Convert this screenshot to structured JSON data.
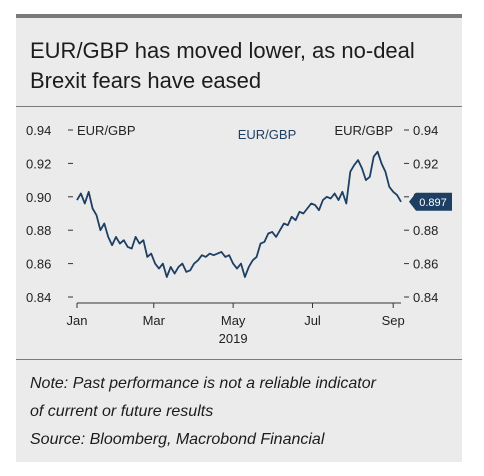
{
  "title_lines": [
    "EUR/GBP has moved lower, as no-deal",
    "Brexit fears have eased"
  ],
  "notes": [
    "Note: Past performance is not a reliable indicator",
    "of current or future results",
    "Source: Bloomberg, Macrobond Financial"
  ],
  "colors": {
    "line": "#1d3f63",
    "badge": "#1d3f63",
    "panel": "#ebebeb",
    "axis": "#333333"
  },
  "chart_data": {
    "type": "line",
    "title": "",
    "left_axis_label": "EUR/GBP",
    "right_axis_label": "EUR/GBP",
    "series": [
      {
        "name": "EUR/GBP",
        "x": [
          "2019-01-01",
          "2019-01-04",
          "2019-01-07",
          "2019-01-10",
          "2019-01-13",
          "2019-01-16",
          "2019-01-19",
          "2019-01-22",
          "2019-01-25",
          "2019-01-28",
          "2019-01-31",
          "2019-02-03",
          "2019-02-06",
          "2019-02-09",
          "2019-02-12",
          "2019-02-15",
          "2019-02-18",
          "2019-02-21",
          "2019-02-24",
          "2019-02-27",
          "2019-03-02",
          "2019-03-05",
          "2019-03-08",
          "2019-03-11",
          "2019-03-14",
          "2019-03-17",
          "2019-03-20",
          "2019-03-23",
          "2019-03-26",
          "2019-03-29",
          "2019-04-01",
          "2019-04-04",
          "2019-04-07",
          "2019-04-10",
          "2019-04-13",
          "2019-04-16",
          "2019-04-19",
          "2019-04-22",
          "2019-04-25",
          "2019-04-28",
          "2019-05-01",
          "2019-05-04",
          "2019-05-07",
          "2019-05-10",
          "2019-05-13",
          "2019-05-16",
          "2019-05-19",
          "2019-05-22",
          "2019-05-25",
          "2019-05-28",
          "2019-05-31",
          "2019-06-03",
          "2019-06-06",
          "2019-06-09",
          "2019-06-12",
          "2019-06-15",
          "2019-06-18",
          "2019-06-21",
          "2019-06-24",
          "2019-06-27",
          "2019-06-30",
          "2019-07-03",
          "2019-07-06",
          "2019-07-09",
          "2019-07-12",
          "2019-07-15",
          "2019-07-18",
          "2019-07-21",
          "2019-07-24",
          "2019-07-27",
          "2019-07-30",
          "2019-08-02",
          "2019-08-05",
          "2019-08-08",
          "2019-08-11",
          "2019-08-14",
          "2019-08-17",
          "2019-08-20",
          "2019-08-23",
          "2019-08-26",
          "2019-08-29",
          "2019-09-01",
          "2019-09-04",
          "2019-09-07"
        ],
        "values": [
          0.898,
          0.902,
          0.896,
          0.903,
          0.893,
          0.889,
          0.88,
          0.884,
          0.876,
          0.871,
          0.876,
          0.872,
          0.874,
          0.87,
          0.869,
          0.876,
          0.872,
          0.874,
          0.864,
          0.866,
          0.86,
          0.857,
          0.86,
          0.852,
          0.858,
          0.854,
          0.858,
          0.86,
          0.855,
          0.856,
          0.86,
          0.862,
          0.865,
          0.864,
          0.866,
          0.865,
          0.866,
          0.867,
          0.864,
          0.865,
          0.86,
          0.857,
          0.86,
          0.852,
          0.858,
          0.862,
          0.864,
          0.872,
          0.873,
          0.878,
          0.879,
          0.876,
          0.88,
          0.884,
          0.883,
          0.888,
          0.886,
          0.891,
          0.89,
          0.893,
          0.896,
          0.895,
          0.892,
          0.898,
          0.9,
          0.899,
          0.902,
          0.898,
          0.903,
          0.896,
          0.915,
          0.919,
          0.922,
          0.917,
          0.91,
          0.912,
          0.924,
          0.927,
          0.92,
          0.915,
          0.906,
          0.903,
          0.901,
          0.897
        ]
      }
    ],
    "xlim": [
      "2019-01-01",
      "2019-09-07"
    ],
    "xticks": [
      {
        "date": "2019-01-01",
        "label": "Jan"
      },
      {
        "date": "2019-03-01",
        "label": "Mar"
      },
      {
        "date": "2019-05-01",
        "label": "May"
      },
      {
        "date": "2019-07-01",
        "label": "Jul"
      },
      {
        "date": "2019-09-01",
        "label": "Sep"
      }
    ],
    "year_label": "2019",
    "ylim": [
      0.84,
      0.94
    ],
    "yticks": [
      "0.94",
      "0.92",
      "0.90",
      "0.88",
      "0.86",
      "0.84"
    ],
    "last_value_label": "0.897",
    "grid": false
  }
}
